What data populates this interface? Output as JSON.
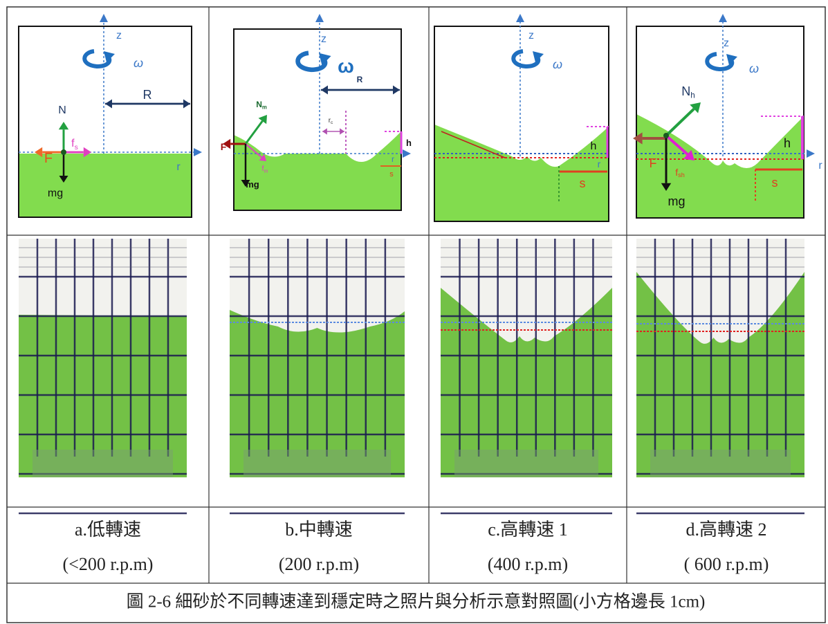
{
  "panels": [
    {
      "label": "a.低轉速",
      "speed": "(<200 r.p.m)",
      "diagram": [
        {
          "text": "z"
        },
        {
          "text": "ω"
        },
        {
          "text": "R"
        },
        {
          "text": "N"
        },
        {
          "text": "f",
          "sub": "s"
        },
        {
          "text": "F"
        },
        {
          "text": "mg"
        },
        {
          "text": "r"
        }
      ]
    },
    {
      "label": "b.中轉速",
      "speed": "(200 r.p.m)",
      "diagram": [
        {
          "text": "z"
        },
        {
          "text": "ω"
        },
        {
          "text": "R"
        },
        {
          "text": "N",
          "sub": "m"
        },
        {
          "text": "r",
          "sub": "c"
        },
        {
          "text": "F"
        },
        {
          "text": "f",
          "sub": "m"
        },
        {
          "text": "mg"
        },
        {
          "text": "h"
        },
        {
          "text": "r"
        },
        {
          "text": "s"
        }
      ]
    },
    {
      "label": "c.高轉速 1",
      "speed": "(400 r.p.m)",
      "diagram": [
        {
          "text": "z"
        },
        {
          "text": "ω"
        },
        {
          "text": "h"
        },
        {
          "text": "r"
        },
        {
          "text": "s"
        }
      ]
    },
    {
      "label": "d.高轉速 2",
      "speed": "( 600 r.p.m)",
      "diagram": [
        {
          "text": "z"
        },
        {
          "text": "ω"
        },
        {
          "text": "N",
          "sub": "h"
        },
        {
          "text": "F"
        },
        {
          "text": "f",
          "sub": "sh"
        },
        {
          "text": "mg"
        },
        {
          "text": "h"
        },
        {
          "text": "s"
        },
        {
          "text": "r"
        }
      ]
    }
  ],
  "caption": "圖 2-6 細砂於不同轉速達到穩定時之照片與分析示意對照圖(小方格邊長 1cm)"
}
